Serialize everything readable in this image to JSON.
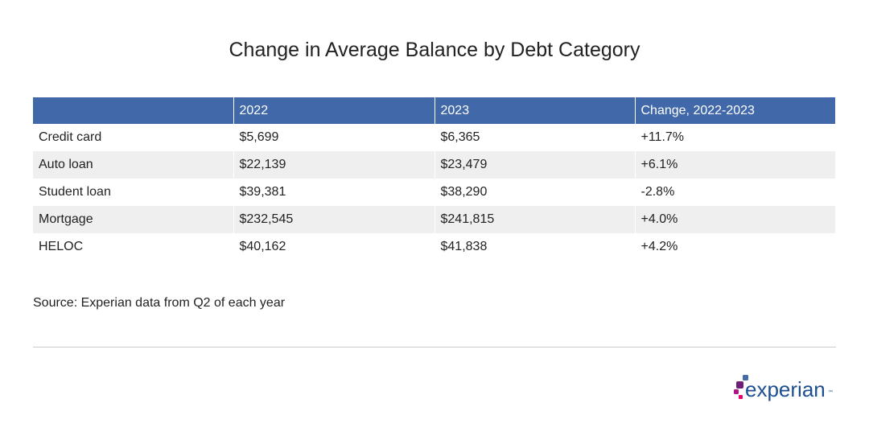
{
  "title": "Change in Average Balance by Debt Category",
  "table": {
    "headers": [
      "",
      "2022",
      "2023",
      "Change, 2022-2023"
    ],
    "rows": [
      [
        "Credit card",
        "$5,699",
        "$6,365",
        "+11.7%"
      ],
      [
        "Auto loan",
        "$22,139",
        "$23,479",
        "+6.1%"
      ],
      [
        "Student loan",
        "$39,381",
        "$38,290",
        "-2.8%"
      ],
      [
        "Mortgage",
        "$232,545",
        "$241,815",
        "+4.0%"
      ],
      [
        "HELOC",
        "$40,162",
        "$41,838",
        "+4.2%"
      ]
    ]
  },
  "source": "Source: Experian data from Q2 of each year",
  "logo": {
    "text": "experian",
    "trademark": "™",
    "colors": {
      "text": "#1d4f91",
      "dot_blue": "#426da9",
      "dot_purple": "#6d2077",
      "dot_magenta": "#af1685",
      "dot_pink": "#e80070"
    }
  },
  "colors": {
    "header_bg": "#4169a9",
    "row_alt_bg": "#efefef"
  }
}
